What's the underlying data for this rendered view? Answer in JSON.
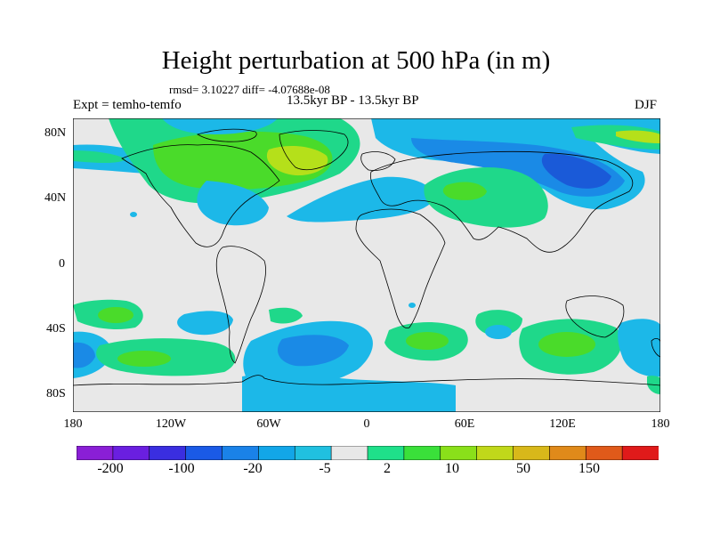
{
  "title": "Height perturbation at 500 hPa (in m)",
  "stats": "rmsd= 3.10227 diff= -4.07688e-08",
  "expt": "Expt = temho-temfo",
  "period": "13.5kyr BP - 13.5kyr BP",
  "season": "DJF",
  "lat_labels": [
    "80N",
    "40N",
    "0",
    "40S",
    "80S"
  ],
  "lon_labels": [
    "180",
    "120W",
    "60W",
    "0",
    "60E",
    "120E",
    "180"
  ],
  "colorbar": {
    "labels": [
      "-200",
      "-100",
      "-20",
      "-5",
      "2",
      "10",
      "50",
      "150"
    ],
    "colors": [
      "#8a1fd6",
      "#6a1fe0",
      "#3a2ee0",
      "#1a5ae6",
      "#1a82e8",
      "#12a6e8",
      "#20c0e0",
      "#e8e8e8",
      "#1fe08a",
      "#3ae03a",
      "#8ae01a",
      "#c0d81a",
      "#d8b81a",
      "#e08a1a",
      "#e05a1a",
      "#e01a1a"
    ]
  },
  "colors": {
    "background": "#e8e8e8",
    "coast": "#000000",
    "pos_weak": "#1fd88a",
    "pos_mid": "#4adb2a",
    "pos_strong": "#b5e01a",
    "neg_weak": "#1cb8e8",
    "neg_mid": "#1a8ae6",
    "neg_strong": "#1a5ad8"
  }
}
